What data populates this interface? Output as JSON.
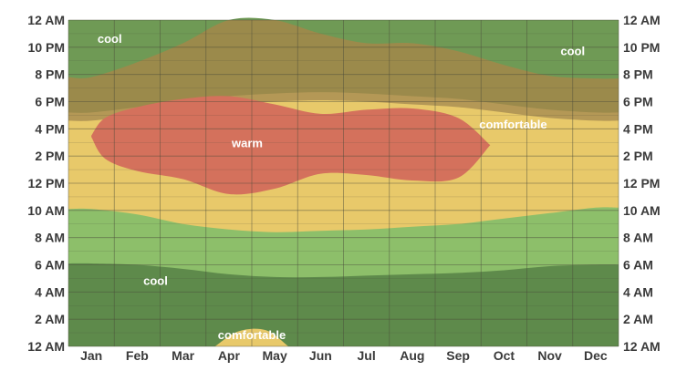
{
  "chart_data": {
    "type": "heatmap",
    "title": "",
    "xlabel": "",
    "ylabel": "",
    "categories": [
      "Jan",
      "Feb",
      "Mar",
      "Apr",
      "May",
      "Jun",
      "Jul",
      "Aug",
      "Sep",
      "Oct",
      "Nov",
      "Dec"
    ],
    "y_ticks": [
      "12 AM",
      "2 AM",
      "4 AM",
      "6 AM",
      "8 AM",
      "10 AM",
      "12 PM",
      "2 PM",
      "4 PM",
      "6 PM",
      "8 PM",
      "10 PM",
      "12 AM"
    ],
    "ylim_hours": [
      0,
      24
    ],
    "grid": true,
    "colors": {
      "cold": "#5e8a4b",
      "cool": "#6f9a55",
      "mild": "#8dbf6a",
      "comfortable": "#e8c96a",
      "warm_band": "#b49856",
      "hot_band": "#9b8a4b",
      "warm": "#d4715c",
      "hot": "#c0674f",
      "grid": "#4a4a3a"
    },
    "boundaries": {
      "x_month_index": [
        0,
        1,
        2,
        3,
        4,
        5,
        6,
        7,
        8,
        9,
        10,
        11
      ],
      "morning_cool_top": [
        6.1,
        6.0,
        5.7,
        5.3,
        5.1,
        5.1,
        5.2,
        5.3,
        5.4,
        5.6,
        5.9,
        6.0
      ],
      "morning_mild_top": [
        10.1,
        9.7,
        9.0,
        8.6,
        8.4,
        8.5,
        8.6,
        8.8,
        9.0,
        9.4,
        9.8,
        10.2
      ],
      "evening_comfortable_top": [
        17.2,
        17.6,
        18.1,
        18.4,
        18.6,
        18.7,
        18.6,
        18.4,
        18.2,
        17.8,
        17.4,
        17.2
      ],
      "evening_band_top": [
        19.8,
        20.9,
        22.3,
        24.0,
        24.0,
        23.0,
        22.3,
        22.3,
        21.7,
        20.7,
        19.9,
        19.7
      ],
      "night_cool_bottom": [
        19.8,
        20.9,
        22.3,
        24.0,
        24.0,
        23.0,
        22.3,
        22.3,
        21.7,
        20.7,
        19.9,
        19.7
      ],
      "warm_region": {
        "x": [
          0.0,
          0.3,
          1.0,
          2.0,
          3.0,
          4.0,
          5.0,
          6.0,
          7.0,
          8.0,
          8.7
        ],
        "top": [
          15.5,
          16.8,
          17.6,
          18.2,
          18.4,
          17.8,
          17.1,
          17.4,
          17.5,
          16.8,
          14.8
        ],
        "bottom": [
          15.4,
          13.8,
          12.9,
          12.3,
          11.2,
          11.6,
          12.7,
          12.6,
          12.2,
          12.4,
          14.8
        ]
      },
      "early_comfortable_spot": {
        "x": [
          2.7,
          3.2,
          3.8,
          4.3
        ],
        "top": [
          0.0,
          1.1,
          1.2,
          0.0
        ]
      }
    },
    "annotations": [
      {
        "text": "cool",
        "month": 0.4,
        "hour": 22.6
      },
      {
        "text": "cool",
        "month": 10.5,
        "hour": 21.7
      },
      {
        "text": "cool",
        "month": 1.4,
        "hour": 4.8
      },
      {
        "text": "comfortable",
        "month": 9.2,
        "hour": 16.3
      },
      {
        "text": "comfortable",
        "month": 3.5,
        "hour": 0.8
      },
      {
        "text": "warm",
        "month": 3.4,
        "hour": 14.9
      }
    ]
  }
}
